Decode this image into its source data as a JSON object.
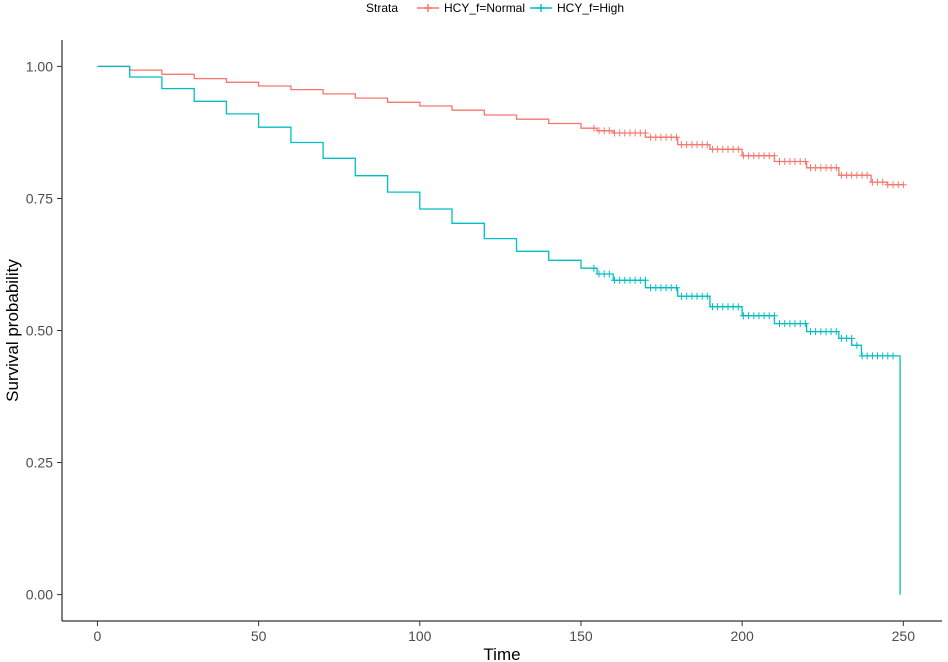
{
  "chart_data": {
    "type": "line",
    "subtype": "step",
    "title": "",
    "xlabel": "Time",
    "ylabel": "Survival probability",
    "xlim": [
      -11,
      262
    ],
    "ylim": [
      -0.05,
      1.05
    ],
    "x_ticks": [
      0,
      50,
      100,
      150,
      200,
      250
    ],
    "x_tick_labels": [
      "0",
      "50",
      "100",
      "150",
      "200",
      "250"
    ],
    "y_ticks": [
      0.0,
      0.25,
      0.5,
      0.75,
      1.0
    ],
    "y_tick_labels": [
      "0.00",
      "0.25",
      "0.50",
      "0.75",
      "1.00"
    ],
    "grid": false,
    "legend": {
      "placement": "top",
      "title": "Strata",
      "entries": [
        "HCY_f=Normal",
        "HCY_f=High"
      ]
    },
    "series": [
      {
        "name": "HCY_f=Normal",
        "color": "#F8766D",
        "points": [
          [
            0,
            1.0
          ],
          [
            10,
            0.993
          ],
          [
            20,
            0.985
          ],
          [
            30,
            0.977
          ],
          [
            40,
            0.97
          ],
          [
            50,
            0.963
          ],
          [
            60,
            0.956
          ],
          [
            70,
            0.948
          ],
          [
            80,
            0.94
          ],
          [
            90,
            0.932
          ],
          [
            100,
            0.925
          ],
          [
            110,
            0.917
          ],
          [
            120,
            0.908
          ],
          [
            130,
            0.9
          ],
          [
            140,
            0.892
          ],
          [
            150,
            0.883
          ],
          [
            155,
            0.878
          ],
          [
            160,
            0.874
          ],
          [
            170,
            0.866
          ],
          [
            180,
            0.852
          ],
          [
            190,
            0.843
          ],
          [
            200,
            0.831
          ],
          [
            210,
            0.82
          ],
          [
            220,
            0.808
          ],
          [
            230,
            0.794
          ],
          [
            240,
            0.781
          ],
          [
            245,
            0.776
          ],
          [
            250,
            0.775
          ]
        ],
        "censor_range": [
          154,
          250
        ]
      },
      {
        "name": "HCY_f=High",
        "color": "#00BFC4",
        "points": [
          [
            0,
            1.0
          ],
          [
            10,
            0.98
          ],
          [
            20,
            0.958
          ],
          [
            30,
            0.934
          ],
          [
            40,
            0.91
          ],
          [
            50,
            0.885
          ],
          [
            60,
            0.856
          ],
          [
            70,
            0.826
          ],
          [
            80,
            0.793
          ],
          [
            90,
            0.762
          ],
          [
            100,
            0.73
          ],
          [
            110,
            0.703
          ],
          [
            120,
            0.674
          ],
          [
            130,
            0.65
          ],
          [
            140,
            0.633
          ],
          [
            150,
            0.618
          ],
          [
            155,
            0.607
          ],
          [
            160,
            0.595
          ],
          [
            170,
            0.581
          ],
          [
            180,
            0.565
          ],
          [
            190,
            0.545
          ],
          [
            200,
            0.528
          ],
          [
            210,
            0.513
          ],
          [
            220,
            0.498
          ],
          [
            230,
            0.485
          ],
          [
            234,
            0.472
          ],
          [
            237,
            0.452
          ],
          [
            249,
            0.452
          ],
          [
            249,
            0.0
          ]
        ],
        "censor_range": [
          154,
          248
        ]
      }
    ]
  }
}
